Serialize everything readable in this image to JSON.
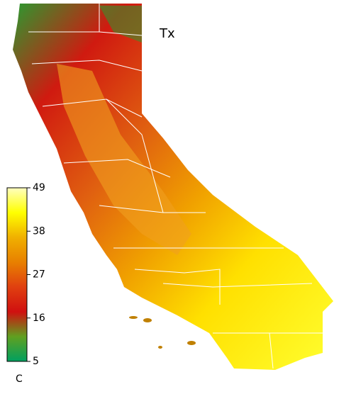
{
  "map": {
    "title": "Tx",
    "colorbar": {
      "label": "C",
      "range": [
        5,
        49
      ],
      "ticks": [
        5,
        16,
        27,
        38,
        49
      ],
      "colors": [
        "#00a060",
        "#60a020",
        "#d01010",
        "#e04010",
        "#e88000",
        "#f0b000",
        "#ffff00",
        "#ffffc0"
      ]
    }
  }
}
